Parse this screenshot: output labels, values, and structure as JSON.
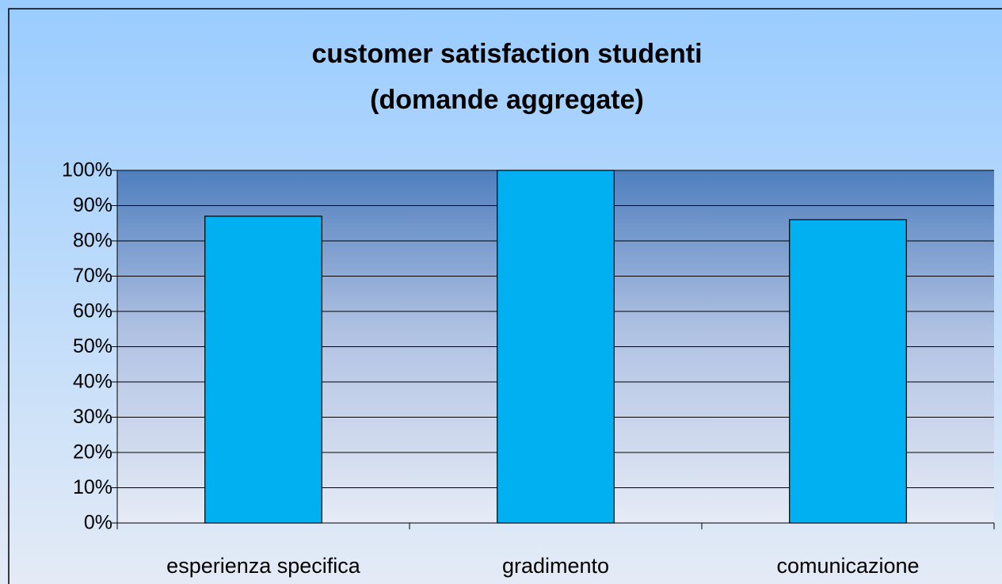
{
  "chart_data": {
    "type": "bar",
    "title": [
      "customer satisfaction studenti",
      "(domande aggregate)"
    ],
    "categories": [
      "esperienza specifica",
      "gradimento",
      "comunicazione"
    ],
    "values": [
      87,
      100,
      86
    ],
    "color": "#00b0f0",
    "ylim": [
      0,
      100
    ],
    "yticks": [
      {
        "value": 0,
        "label": "0%"
      },
      {
        "value": 10,
        "label": "10%"
      },
      {
        "value": 20,
        "label": "20%"
      },
      {
        "value": 30,
        "label": "30%"
      },
      {
        "value": 40,
        "label": "40%"
      },
      {
        "value": 50,
        "label": "50%"
      },
      {
        "value": 60,
        "label": "60%"
      },
      {
        "value": 70,
        "label": "70%"
      },
      {
        "value": 80,
        "label": "80%"
      },
      {
        "value": 90,
        "label": "90%"
      },
      {
        "value": 100,
        "label": "100%"
      }
    ],
    "grid": true
  }
}
